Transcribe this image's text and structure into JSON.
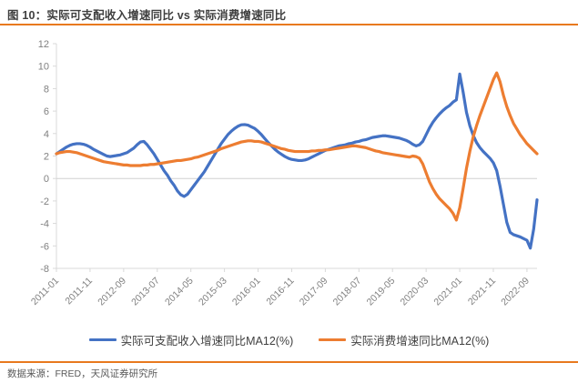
{
  "figure": {
    "title": "图 10：实际可支配收入增速同比 vs 实际消费增速同比",
    "source": "数据来源：FRED，天风证券研究所"
  },
  "colors": {
    "income_line": "#4472C4",
    "consumption_line": "#ED7D31",
    "rule_orange": "#E8791E",
    "axis_text": "#808080",
    "axis_line": "#D9D9D9",
    "zero_gridline": "#D0D0D0",
    "title_text": "#3F3F3F",
    "legend_text": "#404040"
  },
  "chart_data": {
    "type": "line",
    "title": "",
    "xlabel": "",
    "ylabel": "",
    "frequency": "monthly",
    "x_start": "2011-01",
    "x_end": "2022-12",
    "ylim": [
      -8,
      12
    ],
    "y_tick_labels": [
      "12",
      "10",
      "8",
      "6",
      "4",
      "2",
      "0",
      "-2",
      "-4",
      "-6",
      "-8"
    ],
    "x_tick_labels": [
      "2011-01",
      "2011-11",
      "2012-09",
      "2013-07",
      "2014-05",
      "2015-03",
      "2016-01",
      "2016-11",
      "2017-09",
      "2018-07",
      "2019-05",
      "2020-03",
      "2021-01",
      "2021-11",
      "2022-09"
    ],
    "x_tick_every_n_months": 10,
    "grid": "zero-line-only",
    "legend_position": "bottom",
    "series": [
      {
        "name": "实际可支配收入增速同比MA12(%)",
        "color": "#4472C4",
        "values": [
          2.2,
          2.4,
          2.6,
          2.8,
          2.95,
          3.05,
          3.1,
          3.1,
          3.05,
          2.95,
          2.8,
          2.6,
          2.45,
          2.3,
          2.15,
          2.0,
          1.95,
          2.0,
          2.05,
          2.1,
          2.2,
          2.3,
          2.5,
          2.7,
          3.0,
          3.25,
          3.3,
          3.0,
          2.6,
          2.2,
          1.7,
          1.2,
          0.7,
          0.3,
          -0.2,
          -0.6,
          -1.1,
          -1.45,
          -1.6,
          -1.4,
          -1.0,
          -0.6,
          -0.2,
          0.2,
          0.6,
          1.1,
          1.6,
          2.1,
          2.6,
          3.1,
          3.5,
          3.9,
          4.2,
          4.45,
          4.65,
          4.78,
          4.8,
          4.75,
          4.6,
          4.45,
          4.2,
          3.9,
          3.55,
          3.2,
          2.9,
          2.6,
          2.35,
          2.15,
          1.95,
          1.8,
          1.7,
          1.65,
          1.6,
          1.6,
          1.65,
          1.75,
          1.9,
          2.05,
          2.2,
          2.35,
          2.5,
          2.6,
          2.7,
          2.8,
          2.9,
          2.95,
          3.0,
          3.1,
          3.15,
          3.25,
          3.3,
          3.4,
          3.45,
          3.55,
          3.65,
          3.7,
          3.75,
          3.8,
          3.8,
          3.75,
          3.7,
          3.65,
          3.6,
          3.5,
          3.4,
          3.25,
          3.05,
          2.9,
          3.0,
          3.3,
          3.9,
          4.5,
          5.0,
          5.4,
          5.75,
          6.05,
          6.3,
          6.5,
          6.8,
          7.0,
          9.3,
          7.7,
          5.9,
          4.7,
          3.85,
          3.2,
          2.75,
          2.4,
          2.1,
          1.8,
          1.4,
          0.7,
          -0.7,
          -2.3,
          -3.9,
          -4.8,
          -5.0,
          -5.1,
          -5.2,
          -5.35,
          -5.5,
          -6.2,
          -4.5,
          -1.9
        ]
      },
      {
        "name": "实际消费增速同比MA12(%)",
        "color": "#ED7D31",
        "values": [
          2.2,
          2.3,
          2.35,
          2.4,
          2.4,
          2.35,
          2.3,
          2.2,
          2.1,
          2.0,
          1.9,
          1.8,
          1.7,
          1.6,
          1.5,
          1.45,
          1.4,
          1.35,
          1.3,
          1.25,
          1.2,
          1.2,
          1.15,
          1.15,
          1.15,
          1.15,
          1.2,
          1.2,
          1.25,
          1.25,
          1.3,
          1.35,
          1.4,
          1.45,
          1.5,
          1.55,
          1.6,
          1.6,
          1.65,
          1.7,
          1.75,
          1.85,
          1.9,
          2.0,
          2.1,
          2.2,
          2.3,
          2.4,
          2.5,
          2.65,
          2.75,
          2.85,
          2.95,
          3.05,
          3.15,
          3.25,
          3.3,
          3.35,
          3.35,
          3.3,
          3.3,
          3.25,
          3.15,
          3.05,
          2.95,
          2.85,
          2.75,
          2.65,
          2.6,
          2.5,
          2.45,
          2.4,
          2.4,
          2.4,
          2.4,
          2.4,
          2.45,
          2.45,
          2.5,
          2.5,
          2.55,
          2.55,
          2.6,
          2.65,
          2.7,
          2.75,
          2.8,
          2.85,
          2.9,
          2.9,
          2.85,
          2.8,
          2.75,
          2.65,
          2.55,
          2.45,
          2.4,
          2.3,
          2.25,
          2.2,
          2.15,
          2.1,
          2.05,
          2.0,
          1.95,
          1.9,
          2.0,
          1.95,
          1.8,
          1.3,
          0.5,
          -0.3,
          -0.9,
          -1.4,
          -1.8,
          -2.1,
          -2.4,
          -2.7,
          -3.1,
          -3.7,
          -2.6,
          -0.9,
          0.9,
          2.4,
          3.7,
          4.7,
          5.6,
          6.4,
          7.2,
          8.0,
          8.8,
          9.4,
          8.6,
          7.4,
          6.4,
          5.6,
          4.9,
          4.4,
          3.9,
          3.5,
          3.1,
          2.8,
          2.5,
          2.2
        ]
      }
    ]
  }
}
